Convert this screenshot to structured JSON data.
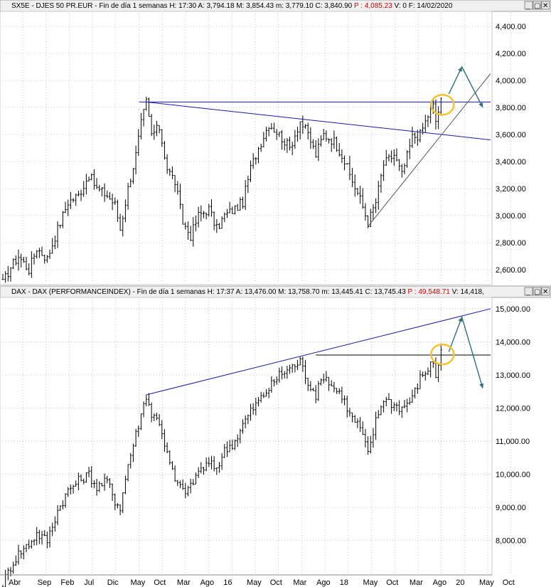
{
  "panels": [
    {
      "id": "sx5e",
      "header": {
        "ticker": "SX5E",
        "description": " - DJES 50 PR.EUR - Fin de día 1 semanas",
        "items": [
          {
            "label": "H:",
            "value": "17:30",
            "color": "#000000"
          },
          {
            "label": "A:",
            "value": "3,794.18",
            "color": "#000000"
          },
          {
            "label": "M:",
            "value": "3,854.43",
            "color": "#000000"
          },
          {
            "label": "m:",
            "value": "3,779.10",
            "color": "#000000"
          },
          {
            "label": "C:",
            "value": "3,840.90",
            "color": "#000000"
          },
          {
            "label": "P :",
            "value": "4,085.23",
            "color": "#d40000"
          },
          {
            "label": "V:",
            "value": "0",
            "color": "#000000"
          },
          {
            "label": "F:",
            "value": "14/02/2020",
            "color": "#000000"
          }
        ],
        "buttons": {
          "minimize": "_",
          "restore": "▢",
          "close": "✕"
        }
      }
    },
    {
      "id": "dax",
      "header": {
        "ticker": "DAX",
        "description": " - DAX (PERFORMANCEINDEX) - Fin de día 1 semanas",
        "items": [
          {
            "label": "H:",
            "value": "17:37",
            "color": "#000000"
          },
          {
            "label": "A:",
            "value": "13,476.00",
            "color": "#000000"
          },
          {
            "label": "M:",
            "value": "13,758.70",
            "color": "#000000"
          },
          {
            "label": "m:",
            "value": "13,445.41",
            "color": "#000000"
          },
          {
            "label": "C:",
            "value": "13,745.43",
            "color": "#000000"
          },
          {
            "label": "P :",
            "value": "49,548.71",
            "color": "#d40000"
          },
          {
            "label": "V:",
            "value": "14,418,",
            "color": "#000000"
          }
        ],
        "buttons": {
          "minimize": "_",
          "restore": "▢",
          "close": "✕"
        }
      }
    }
  ],
  "x_axis_labels": [
    "Abr",
    "Sep",
    "Feb",
    "Jul",
    "Dic",
    "May",
    "Oct",
    "Mar",
    "Ago",
    "16",
    "May",
    "Oct",
    "Mar",
    "Ago",
    "18",
    "May",
    "Oct",
    "Mar",
    "Ago",
    "20",
    "May",
    "Oct"
  ],
  "colors": {
    "price": "#000000",
    "trendline": "#1a1aa8",
    "support": "#555555",
    "arrow": "#2e6f7a",
    "highlight": "#f2c230",
    "grid": "#9a9a9a"
  },
  "chart_data": [
    {
      "type": "line",
      "title": "SX5E - DJES 50 PR.EUR",
      "interval": "weekly",
      "ylim": [
        2500,
        4500
      ],
      "yticks": [
        2600,
        2800,
        3000,
        3200,
        3400,
        3600,
        3800,
        4000,
        4200,
        4400
      ],
      "ytick_labels": [
        "2,600.00",
        "2,800.00",
        "3,000.00",
        "3,200.00",
        "3,400.00",
        "3,600.00",
        "3,800.00",
        "4,000.00",
        "4,200.00",
        "4,400.00"
      ],
      "grid": true,
      "series": [
        {
          "key_points": [
            [
              0,
              2500
            ],
            [
              3,
              2620
            ],
            [
              6,
              2700
            ],
            [
              10,
              2600
            ],
            [
              13,
              2760
            ],
            [
              17,
              2680
            ],
            [
              21,
              2900
            ],
            [
              25,
              3100
            ],
            [
              29,
              3150
            ],
            [
              33,
              3300
            ],
            [
              36,
              3200
            ],
            [
              40,
              3150
            ],
            [
              43,
              3080
            ],
            [
              45,
              2900
            ],
            [
              48,
              3200
            ],
            [
              51,
              3450
            ],
            [
              53,
              3680
            ],
            [
              55,
              3840
            ],
            [
              57,
              3600
            ],
            [
              60,
              3650
            ],
            [
              63,
              3350
            ],
            [
              66,
              3250
            ],
            [
              69,
              2950
            ],
            [
              72,
              2850
            ],
            [
              75,
              3000
            ],
            [
              79,
              3050
            ],
            [
              82,
              2900
            ],
            [
              85,
              3000
            ],
            [
              89,
              3050
            ],
            [
              92,
              3100
            ],
            [
              95,
              3350
            ],
            [
              98,
              3500
            ],
            [
              102,
              3680
            ],
            [
              106,
              3600
            ],
            [
              110,
              3500
            ],
            [
              114,
              3700
            ],
            [
              117,
              3600
            ],
            [
              120,
              3450
            ],
            [
              123,
              3600
            ],
            [
              127,
              3550
            ],
            [
              130,
              3450
            ],
            [
              133,
              3300
            ],
            [
              137,
              3120
            ],
            [
              140,
              2950
            ],
            [
              143,
              3100
            ],
            [
              146,
              3380
            ],
            [
              150,
              3450
            ],
            [
              153,
              3300
            ],
            [
              157,
              3580
            ],
            [
              160,
              3600
            ],
            [
              163,
              3740
            ],
            [
              165,
              3810
            ],
            [
              166,
              3700
            ],
            [
              168,
              3845
            ]
          ],
          "high_low_offsets": [
            60,
            60
          ]
        }
      ],
      "annotations": {
        "resistance": {
          "from": [
            0.0,
            3840
          ],
          "to": [
            1.0,
            3840
          ]
        },
        "descending_trendline": {
          "from": [
            55,
            3840
          ],
          "to": [
            187,
            3560
          ]
        },
        "ascending_support": {
          "from": [
            140,
            2920
          ],
          "to": [
            187,
            4050
          ]
        },
        "forecast_arrow": [
          [
            171,
            3900
          ],
          [
            176,
            4100
          ],
          [
            184,
            3800
          ]
        ],
        "highlight": {
          "center": [
            168,
            3820
          ]
        }
      }
    },
    {
      "type": "line",
      "title": "DAX - DAX (PERFORMANCEINDEX)",
      "interval": "weekly",
      "ylim": [
        7000,
        15300
      ],
      "yticks": [
        8000,
        9000,
        10000,
        11000,
        12000,
        13000,
        14000,
        15000
      ],
      "ytick_labels": [
        "8,000.00",
        "9,000.00",
        "10,000.00",
        "11,000.00",
        "12,000.00",
        "13,000.00",
        "14,000.00",
        "15,000.00"
      ],
      "grid": true,
      "series": [
        {
          "key_points": [
            [
              0,
              6700
            ],
            [
              3,
              7200
            ],
            [
              6,
              7600
            ],
            [
              10,
              7900
            ],
            [
              13,
              8200
            ],
            [
              17,
              8000
            ],
            [
              21,
              8900
            ],
            [
              25,
              9500
            ],
            [
              29,
              9800
            ],
            [
              33,
              10000
            ],
            [
              36,
              9600
            ],
            [
              40,
              9800
            ],
            [
              43,
              9200
            ],
            [
              45,
              9000
            ],
            [
              48,
              10300
            ],
            [
              51,
              11200
            ],
            [
              53,
              11800
            ],
            [
              55,
              12400
            ],
            [
              57,
              11800
            ],
            [
              60,
              11600
            ],
            [
              63,
              10600
            ],
            [
              66,
              9800
            ],
            [
              69,
              9500
            ],
            [
              72,
              9600
            ],
            [
              75,
              10100
            ],
            [
              79,
              10300
            ],
            [
              82,
              10200
            ],
            [
              85,
              10700
            ],
            [
              89,
              11000
            ],
            [
              92,
              11500
            ],
            [
              95,
              11900
            ],
            [
              98,
              12200
            ],
            [
              102,
              12600
            ],
            [
              106,
              13000
            ],
            [
              110,
              13200
            ],
            [
              114,
              13400
            ],
            [
              117,
              12800
            ],
            [
              120,
              12400
            ],
            [
              123,
              13000
            ],
            [
              127,
              12600
            ],
            [
              130,
              12400
            ],
            [
              133,
              11800
            ],
            [
              137,
              11400
            ],
            [
              140,
              10600
            ],
            [
              143,
              11600
            ],
            [
              146,
              12300
            ],
            [
              150,
              12100
            ],
            [
              153,
              12000
            ],
            [
              157,
              12300
            ],
            [
              160,
              12900
            ],
            [
              163,
              13200
            ],
            [
              165,
              13400
            ],
            [
              166,
              13000
            ],
            [
              168,
              13700
            ]
          ],
          "high_low_offsets": [
            200,
            200
          ]
        }
      ],
      "annotations": {
        "rising_trendline": {
          "from": [
            55,
            12400
          ],
          "to": [
            187,
            15000
          ]
        },
        "horizontal_resistance": {
          "from": [
            120,
            13600
          ],
          "to": [
            187,
            13600
          ]
        },
        "forecast_arrow": [
          [
            171,
            13700
          ],
          [
            176,
            14750
          ],
          [
            184,
            12600
          ]
        ],
        "highlight": {
          "center": [
            168,
            13620
          ]
        }
      }
    }
  ]
}
